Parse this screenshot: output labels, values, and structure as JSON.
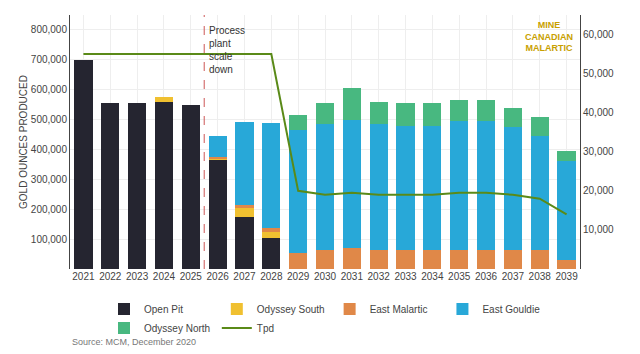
{
  "chart_data": {
    "type": "bar",
    "stacked": true,
    "categories": [
      "2021",
      "2022",
      "2023",
      "2024",
      "2025",
      "2026",
      "2027",
      "2028",
      "2029",
      "2030",
      "2031",
      "2032",
      "2033",
      "2034",
      "2035",
      "2036",
      "2037",
      "2038",
      "2039"
    ],
    "series": [
      {
        "name": "Open Pit",
        "type": "bar",
        "color": "#252530",
        "values": [
          700000,
          555000,
          555000,
          560000,
          550000,
          365000,
          175000,
          105000,
          0,
          0,
          0,
          0,
          0,
          0,
          0,
          0,
          0,
          0,
          0
        ]
      },
      {
        "name": "Odyssey South",
        "type": "bar",
        "color": "#f0c030",
        "values": [
          0,
          0,
          0,
          15000,
          0,
          5000,
          28000,
          18000,
          0,
          0,
          0,
          0,
          0,
          0,
          0,
          0,
          0,
          0,
          0
        ]
      },
      {
        "name": "East Malartic",
        "type": "bar",
        "color": "#e08848",
        "values": [
          0,
          0,
          0,
          0,
          0,
          5000,
          10000,
          15000,
          55000,
          65000,
          70000,
          65000,
          65000,
          65000,
          65000,
          65000,
          65000,
          65000,
          30000
        ]
      },
      {
        "name": "East Gouldie",
        "type": "bar",
        "color": "#28a8d8",
        "values": [
          0,
          0,
          0,
          0,
          0,
          70000,
          280000,
          350000,
          410000,
          420000,
          430000,
          420000,
          415000,
          415000,
          430000,
          430000,
          410000,
          380000,
          330000
        ]
      },
      {
        "name": "Odyssey North",
        "type": "bar",
        "color": "#48b880",
        "values": [
          0,
          0,
          0,
          0,
          0,
          0,
          0,
          0,
          50000,
          70000,
          105000,
          75000,
          75000,
          75000,
          70000,
          70000,
          65000,
          65000,
          35000
        ]
      },
      {
        "name": "Tpd",
        "type": "line",
        "axis": "y2",
        "color": "#5a8a18",
        "values": [
          55000,
          55000,
          55000,
          55000,
          55000,
          55000,
          55000,
          55000,
          20000,
          19000,
          19500,
          19000,
          19000,
          19000,
          19500,
          19500,
          19000,
          18000,
          14000
        ]
      }
    ],
    "ylabel": "GOLD OUNCES PRODUCED",
    "ylim": [
      0,
      850000
    ],
    "yticks": [
      {
        "value": 100000,
        "label": "100,000"
      },
      {
        "value": 200000,
        "label": "200,000"
      },
      {
        "value": 300000,
        "label": "300,000"
      },
      {
        "value": 400000,
        "label": "400,000"
      },
      {
        "value": 500000,
        "label": "500,000"
      },
      {
        "value": 600000,
        "label": "600,000"
      },
      {
        "value": 700000,
        "label": "700,000"
      },
      {
        "value": 800000,
        "label": "800,000"
      }
    ],
    "y2lim": [
      0,
      65000
    ],
    "y2ticks": [
      {
        "value": 10000,
        "label": "10,000"
      },
      {
        "value": 20000,
        "label": "20,000"
      },
      {
        "value": 30000,
        "label": "30,000"
      },
      {
        "value": 40000,
        "label": "40,000"
      },
      {
        "value": 50000,
        "label": "50,000"
      },
      {
        "value": 60000,
        "label": "60,000"
      }
    ],
    "grid": true,
    "legend": "bottom",
    "annotations": [
      {
        "text": "Process\nplant\nscale\ndown",
        "x": "2025"
      },
      {
        "text": "Source: MCM, December 2020"
      },
      {
        "text": "MINE\nCANADIAN\nMALARTIC"
      }
    ]
  }
}
